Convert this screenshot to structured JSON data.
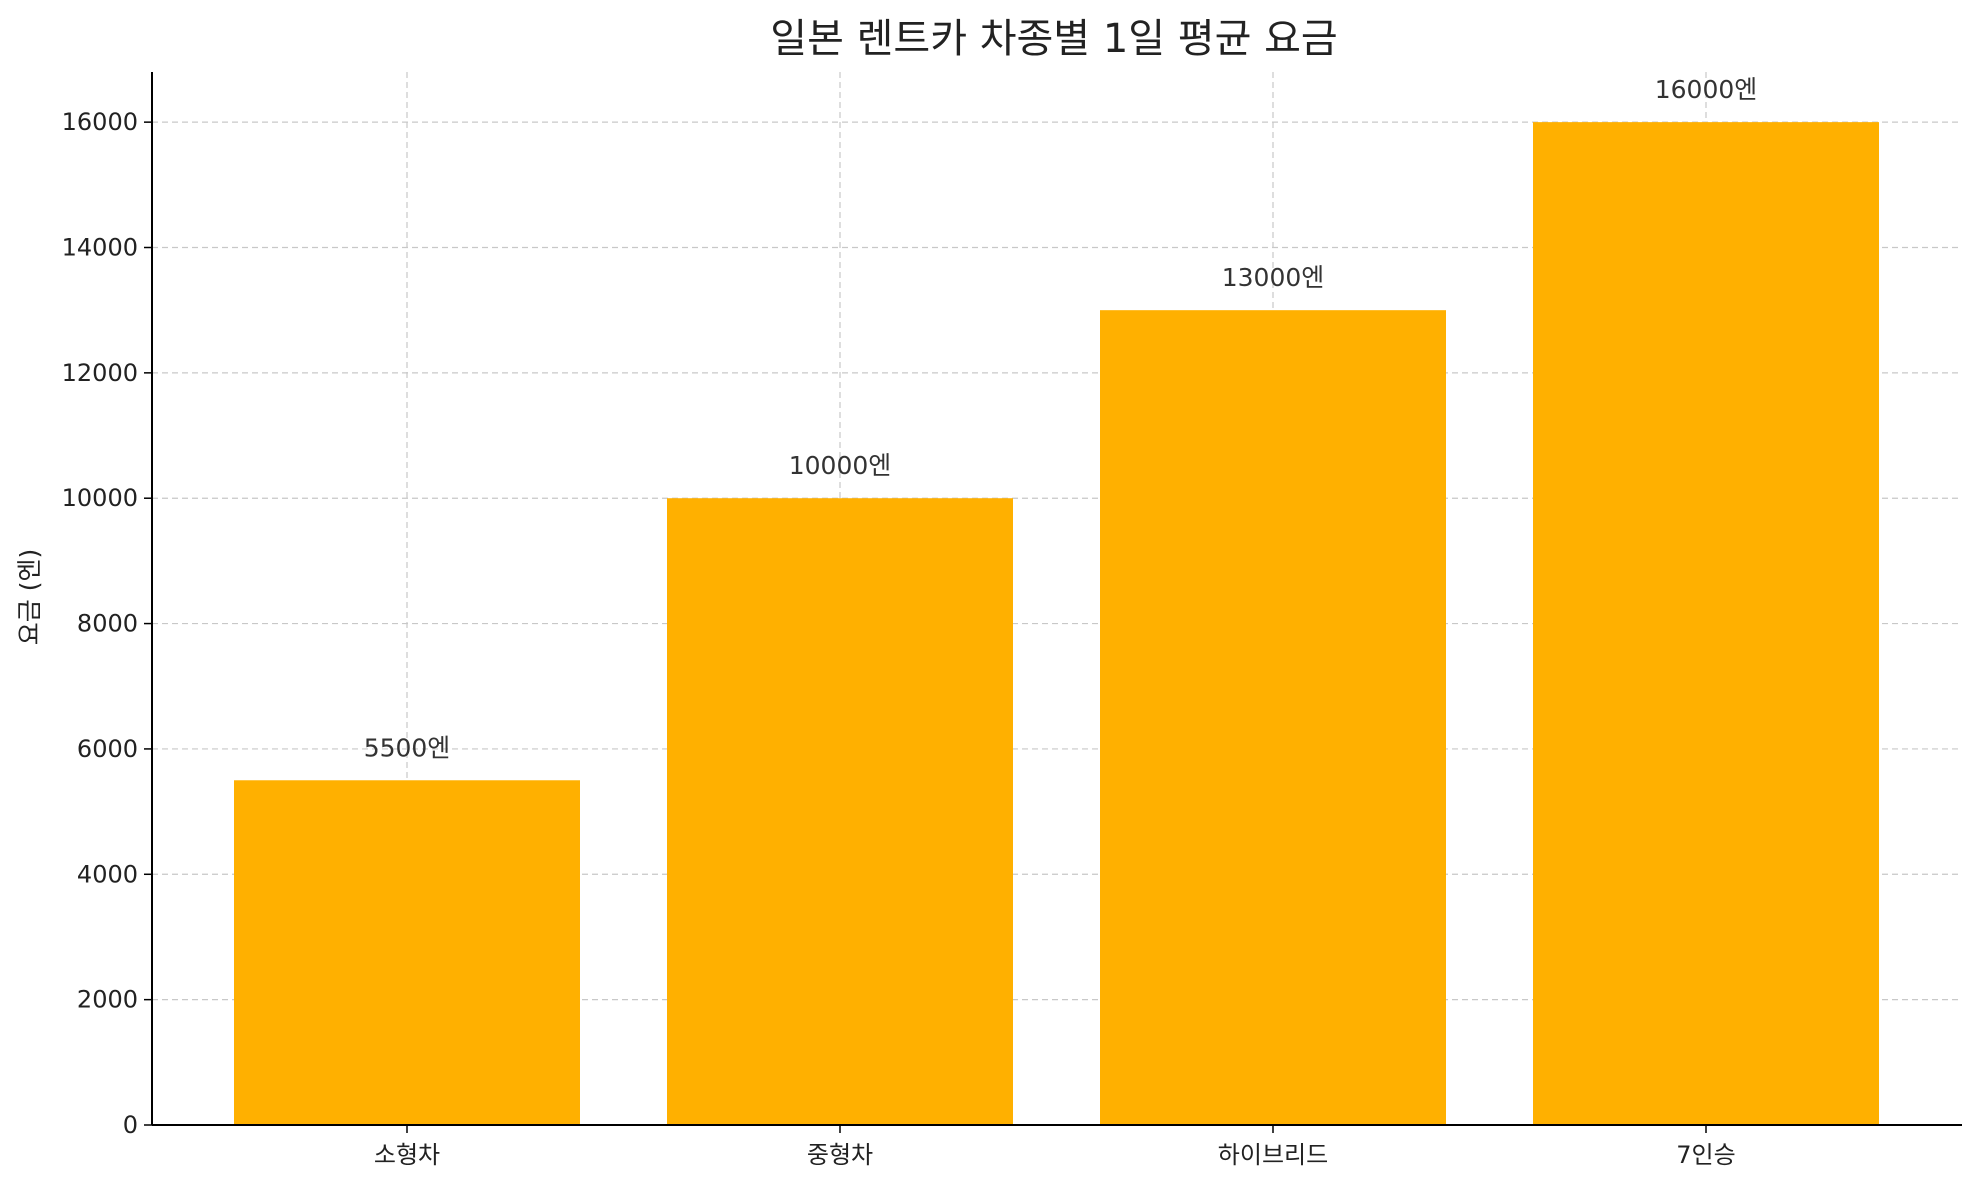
{
  "chart_data": {
    "type": "bar",
    "title": "일본 렌트카 차종별 1일 평균 요금",
    "xlabel": "",
    "ylabel": "요금 (엔)",
    "categories": [
      "소형차",
      "중형차",
      "하이브리드",
      "7인승"
    ],
    "values": [
      5500,
      10000,
      13000,
      16000
    ],
    "data_labels": [
      "5500엔",
      "10000엔",
      "13000엔",
      "16000엔"
    ],
    "ylim": [
      0,
      16800
    ],
    "yticks": [
      0,
      2000,
      4000,
      6000,
      8000,
      10000,
      12000,
      14000,
      16000
    ],
    "grid": true,
    "legend": "none",
    "colors": {
      "bar": "#FFB000",
      "grid": "#c8c8c8",
      "axis": "#000000"
    }
  }
}
